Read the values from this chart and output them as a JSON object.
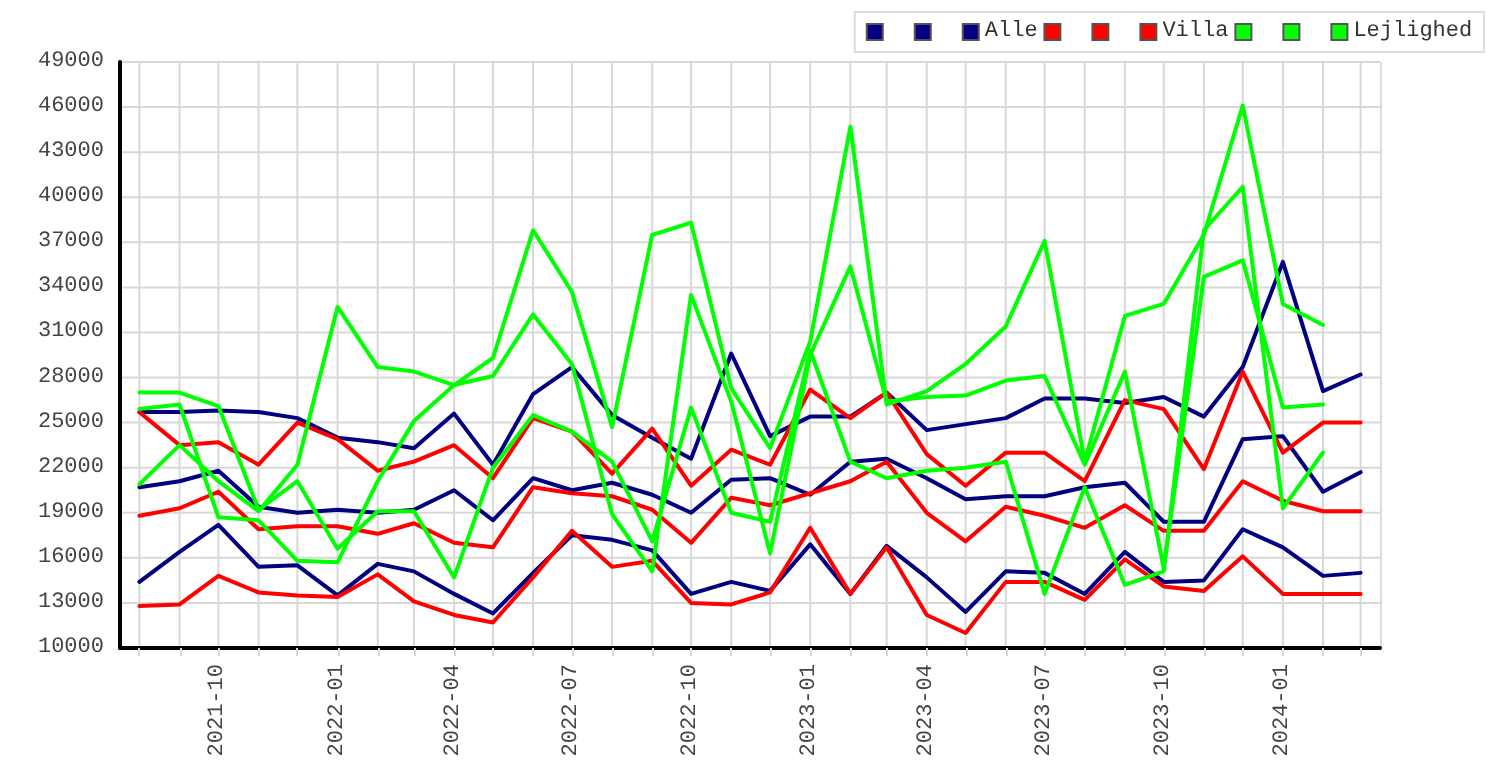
{
  "chart_data": {
    "type": "line",
    "x": [
      "2021-08",
      "2021-09",
      "2021-10",
      "2021-11",
      "2021-12",
      "2022-01",
      "2022-02",
      "2022-03",
      "2022-04",
      "2022-05",
      "2022-06",
      "2022-07",
      "2022-08",
      "2022-09",
      "2022-10",
      "2022-11",
      "2022-12",
      "2023-01",
      "2023-02",
      "2023-03",
      "2023-04",
      "2023-05",
      "2023-06",
      "2023-07",
      "2023-08",
      "2023-09",
      "2023-10",
      "2023-11",
      "2023-12",
      "2024-01",
      "2024-02",
      "2024-03"
    ],
    "series": [
      {
        "color": "#000080",
        "values": [
          25700,
          25700,
          25800,
          25700,
          25300,
          24000,
          23700,
          23300,
          25600,
          22200,
          26900,
          28700,
          25500,
          24000,
          22600,
          29600,
          24100,
          25400,
          25400,
          27000,
          24500,
          24900,
          25300,
          26600,
          26600,
          26300,
          26700,
          25400,
          28700,
          35700,
          27100,
          28200
        ]
      },
      {
        "color": "#000080",
        "values": [
          20700,
          21100,
          21800,
          19400,
          19000,
          19200,
          19000,
          19200,
          20500,
          18500,
          21300,
          20500,
          21000,
          20200,
          19000,
          21200,
          21300,
          20200,
          22400,
          22600,
          21300,
          19900,
          20100,
          20100,
          20700,
          21000,
          18400,
          18400,
          23900,
          24100,
          20400,
          21700
        ]
      },
      {
        "name": "Alle",
        "color": "#000080",
        "values": [
          14400,
          16400,
          18200,
          15400,
          15500,
          13500,
          15600,
          15100,
          13600,
          12300,
          15000,
          17500,
          17200,
          16500,
          13600,
          14400,
          13800,
          16900,
          13600,
          16800,
          14700,
          12400,
          15100,
          15000,
          13600,
          16400,
          14400,
          14500,
          17900,
          16700,
          14800,
          15000
        ]
      },
      {
        "color": "#ff0000",
        "values": [
          25700,
          23500,
          23700,
          22200,
          25000,
          23900,
          21800,
          22400,
          23500,
          21300,
          25300,
          24400,
          21600,
          24600,
          20800,
          23200,
          22200,
          27200,
          25300,
          27000,
          22900,
          20800,
          23000,
          23000,
          21100,
          26500,
          25900,
          21900,
          28400,
          23000,
          25000,
          25000
        ]
      },
      {
        "color": "#ff0000",
        "values": [
          18800,
          19300,
          20400,
          17900,
          18100,
          18100,
          17600,
          18300,
          17000,
          16700,
          20700,
          20300,
          20100,
          19200,
          17000,
          20000,
          19500,
          20300,
          21100,
          22400,
          19000,
          17100,
          19400,
          18800,
          18000,
          19500,
          17800,
          17800,
          21100,
          19800,
          19100,
          19100
        ]
      },
      {
        "name": "Villa",
        "color": "#ff0000",
        "values": [
          12800,
          12900,
          14800,
          13700,
          13500,
          13400,
          14900,
          13100,
          12200,
          11700,
          14700,
          17800,
          15400,
          15800,
          13000,
          12900,
          13700,
          18000,
          13600,
          16700,
          12200,
          11000,
          14400,
          14400,
          13200,
          15900,
          14100,
          13800,
          16100,
          13600,
          13600,
          13600
        ]
      },
      {
        "color": "#00ff00",
        "values": [
          25900,
          26200,
          18700,
          18500,
          15800,
          15700,
          21100,
          25100,
          27500,
          29300,
          37800,
          33700,
          24700,
          37500,
          38300,
          27300,
          23300,
          30400,
          44700,
          26200,
          27100,
          28900,
          31400,
          37100,
          22400,
          32100,
          32900,
          37500,
          46100,
          32900,
          31500,
          null
        ]
      },
      {
        "color": "#00ff00",
        "values": [
          20900,
          23500,
          21100,
          19100,
          22200,
          32700,
          28700,
          28400,
          27500,
          28100,
          32200,
          28900,
          18900,
          15100,
          33500,
          26400,
          16300,
          29500,
          35400,
          26400,
          26700,
          26800,
          27800,
          28100,
          22200,
          28400,
          15300,
          34700,
          35800,
          26000,
          26200,
          null
        ]
      },
      {
        "name": "Lejlighed",
        "color": "#00ff00",
        "values": [
          27000,
          27000,
          26100,
          19200,
          21100,
          16600,
          19100,
          19100,
          14700,
          22000,
          25500,
          24400,
          22400,
          17100,
          26000,
          19000,
          18400,
          29800,
          22400,
          21300,
          21800,
          22000,
          22400,
          13600,
          20700,
          14200,
          15100,
          37800,
          40700,
          19300,
          23000,
          null
        ]
      }
    ],
    "xlim": [
      "2021-07-17",
      "2024-03-16"
    ],
    "xticks": [
      {
        "value": "2021-08",
        "label": null
      },
      {
        "value": "2021-09",
        "label": null
      },
      {
        "value": "2021-10",
        "label": "2021-10"
      },
      {
        "value": "2021-11",
        "label": null
      },
      {
        "value": "2021-12",
        "label": null
      },
      {
        "value": "2022-01",
        "label": "2022-01"
      },
      {
        "value": "2022-02",
        "label": null
      },
      {
        "value": "2022-03",
        "label": null
      },
      {
        "value": "2022-04",
        "label": "2022-04"
      },
      {
        "value": "2022-05",
        "label": null
      },
      {
        "value": "2022-06",
        "label": null
      },
      {
        "value": "2022-07",
        "label": "2022-07"
      },
      {
        "value": "2022-08",
        "label": null
      },
      {
        "value": "2022-09",
        "label": null
      },
      {
        "value": "2022-10",
        "label": "2022-10"
      },
      {
        "value": "2022-11",
        "label": null
      },
      {
        "value": "2022-12",
        "label": null
      },
      {
        "value": "2023-01",
        "label": "2023-01"
      },
      {
        "value": "2023-02",
        "label": null
      },
      {
        "value": "2023-03",
        "label": null
      },
      {
        "value": "2023-04",
        "label": "2023-04"
      },
      {
        "value": "2023-05",
        "label": null
      },
      {
        "value": "2023-06",
        "label": null
      },
      {
        "value": "2023-07",
        "label": "2023-07"
      },
      {
        "value": "2023-08",
        "label": null
      },
      {
        "value": "2023-09",
        "label": null
      },
      {
        "value": "2023-10",
        "label": "2023-10"
      },
      {
        "value": "2023-11",
        "label": null
      },
      {
        "value": "2023-12",
        "label": null
      },
      {
        "value": "2024-01",
        "label": "2024-01"
      },
      {
        "value": "2024-02",
        "label": null
      },
      {
        "value": "2024-03",
        "label": null
      }
    ],
    "ylim": [
      10000,
      49000
    ],
    "yticks": [
      10000,
      13000,
      16000,
      19000,
      22000,
      25000,
      28000,
      31000,
      34000,
      37000,
      40000,
      43000,
      46000,
      49000
    ],
    "grid": true,
    "legend": "top right",
    "marker": "none",
    "line_style": "solid"
  }
}
